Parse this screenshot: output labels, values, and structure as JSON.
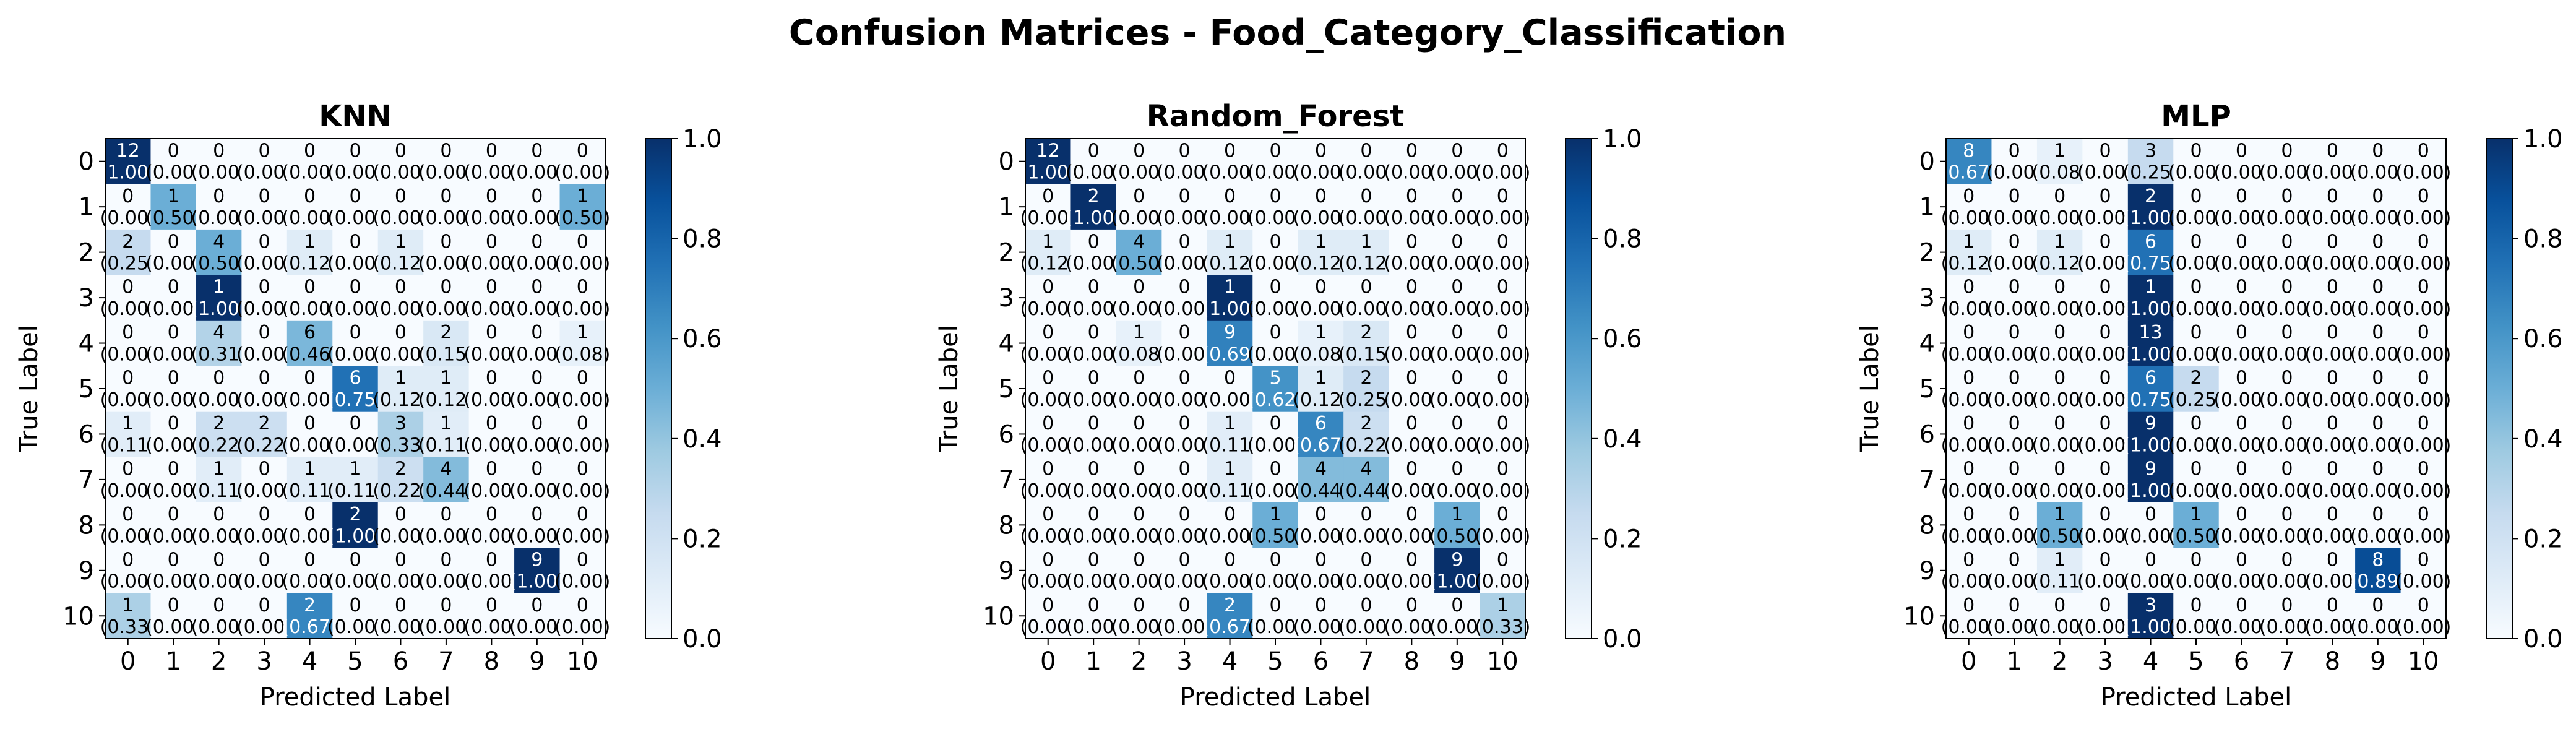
{
  "figure_title": "Confusion Matrices - Food_Category_Classification",
  "chart_data": [
    {
      "type": "heatmap",
      "title": "KNN",
      "xlabel": "Predicted Label",
      "ylabel": "True Label",
      "x_ticks": [
        "0",
        "1",
        "2",
        "3",
        "4",
        "5",
        "6",
        "7",
        "8",
        "9",
        "10"
      ],
      "y_ticks": [
        "0",
        "1",
        "2",
        "3",
        "4",
        "5",
        "6",
        "7",
        "8",
        "9",
        "10"
      ],
      "counts": [
        [
          12,
          0,
          0,
          0,
          0,
          0,
          0,
          0,
          0,
          0,
          0
        ],
        [
          0,
          1,
          0,
          0,
          0,
          0,
          0,
          0,
          0,
          0,
          1
        ],
        [
          2,
          0,
          4,
          0,
          1,
          0,
          1,
          0,
          0,
          0,
          0
        ],
        [
          0,
          0,
          1,
          0,
          0,
          0,
          0,
          0,
          0,
          0,
          0
        ],
        [
          0,
          0,
          4,
          0,
          6,
          0,
          0,
          2,
          0,
          0,
          1
        ],
        [
          0,
          0,
          0,
          0,
          0,
          6,
          1,
          1,
          0,
          0,
          0
        ],
        [
          1,
          0,
          2,
          2,
          0,
          0,
          3,
          1,
          0,
          0,
          0
        ],
        [
          0,
          0,
          1,
          0,
          1,
          1,
          2,
          4,
          0,
          0,
          0
        ],
        [
          0,
          0,
          0,
          0,
          0,
          2,
          0,
          0,
          0,
          0,
          0
        ],
        [
          0,
          0,
          0,
          0,
          0,
          0,
          0,
          0,
          0,
          9,
          0
        ],
        [
          1,
          0,
          0,
          0,
          2,
          0,
          0,
          0,
          0,
          0,
          0
        ]
      ],
      "normalized": [
        [
          "1.00",
          "0.00",
          "0.00",
          "0.00",
          "0.00",
          "0.00",
          "0.00",
          "0.00",
          "0.00",
          "0.00",
          "0.00"
        ],
        [
          "0.00",
          "0.50",
          "0.00",
          "0.00",
          "0.00",
          "0.00",
          "0.00",
          "0.00",
          "0.00",
          "0.00",
          "0.50"
        ],
        [
          "0.25",
          "0.00",
          "0.50",
          "0.00",
          "0.12",
          "0.00",
          "0.12",
          "0.00",
          "0.00",
          "0.00",
          "0.00"
        ],
        [
          "0.00",
          "0.00",
          "1.00",
          "0.00",
          "0.00",
          "0.00",
          "0.00",
          "0.00",
          "0.00",
          "0.00",
          "0.00"
        ],
        [
          "0.00",
          "0.00",
          "0.31",
          "0.00",
          "0.46",
          "0.00",
          "0.00",
          "0.15",
          "0.00",
          "0.00",
          "0.08"
        ],
        [
          "0.00",
          "0.00",
          "0.00",
          "0.00",
          "0.00",
          "0.75",
          "0.12",
          "0.12",
          "0.00",
          "0.00",
          "0.00"
        ],
        [
          "0.11",
          "0.00",
          "0.22",
          "0.22",
          "0.00",
          "0.00",
          "0.33",
          "0.11",
          "0.00",
          "0.00",
          "0.00"
        ],
        [
          "0.00",
          "0.00",
          "0.11",
          "0.00",
          "0.11",
          "0.11",
          "0.22",
          "0.44",
          "0.00",
          "0.00",
          "0.00"
        ],
        [
          "0.00",
          "0.00",
          "0.00",
          "0.00",
          "0.00",
          "1.00",
          "0.00",
          "0.00",
          "0.00",
          "0.00",
          "0.00"
        ],
        [
          "0.00",
          "0.00",
          "0.00",
          "0.00",
          "0.00",
          "0.00",
          "0.00",
          "0.00",
          "0.00",
          "1.00",
          "0.00"
        ],
        [
          "0.33",
          "0.00",
          "0.00",
          "0.00",
          "0.67",
          "0.00",
          "0.00",
          "0.00",
          "0.00",
          "0.00",
          "0.00"
        ]
      ],
      "colorbar": {
        "range": [
          0,
          1
        ],
        "ticks": [
          "0.0",
          "0.2",
          "0.4",
          "0.6",
          "0.8",
          "1.0"
        ],
        "colormap": "Blues"
      }
    },
    {
      "type": "heatmap",
      "title": "Random_Forest",
      "xlabel": "Predicted Label",
      "ylabel": "True Label",
      "x_ticks": [
        "0",
        "1",
        "2",
        "3",
        "4",
        "5",
        "6",
        "7",
        "8",
        "9",
        "10"
      ],
      "y_ticks": [
        "0",
        "1",
        "2",
        "3",
        "4",
        "5",
        "6",
        "7",
        "8",
        "9",
        "10"
      ],
      "counts": [
        [
          12,
          0,
          0,
          0,
          0,
          0,
          0,
          0,
          0,
          0,
          0
        ],
        [
          0,
          2,
          0,
          0,
          0,
          0,
          0,
          0,
          0,
          0,
          0
        ],
        [
          1,
          0,
          4,
          0,
          1,
          0,
          1,
          1,
          0,
          0,
          0
        ],
        [
          0,
          0,
          0,
          0,
          1,
          0,
          0,
          0,
          0,
          0,
          0
        ],
        [
          0,
          0,
          1,
          0,
          9,
          0,
          1,
          2,
          0,
          0,
          0
        ],
        [
          0,
          0,
          0,
          0,
          0,
          5,
          1,
          2,
          0,
          0,
          0
        ],
        [
          0,
          0,
          0,
          0,
          1,
          0,
          6,
          2,
          0,
          0,
          0
        ],
        [
          0,
          0,
          0,
          0,
          1,
          0,
          4,
          4,
          0,
          0,
          0
        ],
        [
          0,
          0,
          0,
          0,
          0,
          1,
          0,
          0,
          0,
          1,
          0
        ],
        [
          0,
          0,
          0,
          0,
          0,
          0,
          0,
          0,
          0,
          9,
          0
        ],
        [
          0,
          0,
          0,
          0,
          2,
          0,
          0,
          0,
          0,
          0,
          1
        ]
      ],
      "normalized": [
        [
          "1.00",
          "0.00",
          "0.00",
          "0.00",
          "0.00",
          "0.00",
          "0.00",
          "0.00",
          "0.00",
          "0.00",
          "0.00"
        ],
        [
          "0.00",
          "1.00",
          "0.00",
          "0.00",
          "0.00",
          "0.00",
          "0.00",
          "0.00",
          "0.00",
          "0.00",
          "0.00"
        ],
        [
          "0.12",
          "0.00",
          "0.50",
          "0.00",
          "0.12",
          "0.00",
          "0.12",
          "0.12",
          "0.00",
          "0.00",
          "0.00"
        ],
        [
          "0.00",
          "0.00",
          "0.00",
          "0.00",
          "1.00",
          "0.00",
          "0.00",
          "0.00",
          "0.00",
          "0.00",
          "0.00"
        ],
        [
          "0.00",
          "0.00",
          "0.08",
          "0.00",
          "0.69",
          "0.00",
          "0.08",
          "0.15",
          "0.00",
          "0.00",
          "0.00"
        ],
        [
          "0.00",
          "0.00",
          "0.00",
          "0.00",
          "0.00",
          "0.62",
          "0.12",
          "0.25",
          "0.00",
          "0.00",
          "0.00"
        ],
        [
          "0.00",
          "0.00",
          "0.00",
          "0.00",
          "0.11",
          "0.00",
          "0.67",
          "0.22",
          "0.00",
          "0.00",
          "0.00"
        ],
        [
          "0.00",
          "0.00",
          "0.00",
          "0.00",
          "0.11",
          "0.00",
          "0.44",
          "0.44",
          "0.00",
          "0.00",
          "0.00"
        ],
        [
          "0.00",
          "0.00",
          "0.00",
          "0.00",
          "0.00",
          "0.50",
          "0.00",
          "0.00",
          "0.00",
          "0.50",
          "0.00"
        ],
        [
          "0.00",
          "0.00",
          "0.00",
          "0.00",
          "0.00",
          "0.00",
          "0.00",
          "0.00",
          "0.00",
          "1.00",
          "0.00"
        ],
        [
          "0.00",
          "0.00",
          "0.00",
          "0.00",
          "0.67",
          "0.00",
          "0.00",
          "0.00",
          "0.00",
          "0.00",
          "0.33"
        ]
      ],
      "colorbar": {
        "range": [
          0,
          1
        ],
        "ticks": [
          "0.0",
          "0.2",
          "0.4",
          "0.6",
          "0.8",
          "1.0"
        ],
        "colormap": "Blues"
      }
    },
    {
      "type": "heatmap",
      "title": "MLP",
      "xlabel": "Predicted Label",
      "ylabel": "True Label",
      "x_ticks": [
        "0",
        "1",
        "2",
        "3",
        "4",
        "5",
        "6",
        "7",
        "8",
        "9",
        "10"
      ],
      "y_ticks": [
        "0",
        "1",
        "2",
        "3",
        "4",
        "5",
        "6",
        "7",
        "8",
        "9",
        "10"
      ],
      "counts": [
        [
          8,
          0,
          1,
          0,
          3,
          0,
          0,
          0,
          0,
          0,
          0
        ],
        [
          0,
          0,
          0,
          0,
          2,
          0,
          0,
          0,
          0,
          0,
          0
        ],
        [
          1,
          0,
          1,
          0,
          6,
          0,
          0,
          0,
          0,
          0,
          0
        ],
        [
          0,
          0,
          0,
          0,
          1,
          0,
          0,
          0,
          0,
          0,
          0
        ],
        [
          0,
          0,
          0,
          0,
          13,
          0,
          0,
          0,
          0,
          0,
          0
        ],
        [
          0,
          0,
          0,
          0,
          6,
          2,
          0,
          0,
          0,
          0,
          0
        ],
        [
          0,
          0,
          0,
          0,
          9,
          0,
          0,
          0,
          0,
          0,
          0
        ],
        [
          0,
          0,
          0,
          0,
          9,
          0,
          0,
          0,
          0,
          0,
          0
        ],
        [
          0,
          0,
          1,
          0,
          0,
          1,
          0,
          0,
          0,
          0,
          0
        ],
        [
          0,
          0,
          1,
          0,
          0,
          0,
          0,
          0,
          0,
          8,
          0
        ],
        [
          0,
          0,
          0,
          0,
          3,
          0,
          0,
          0,
          0,
          0,
          0
        ]
      ],
      "normalized": [
        [
          "0.67",
          "0.00",
          "0.08",
          "0.00",
          "0.25",
          "0.00",
          "0.00",
          "0.00",
          "0.00",
          "0.00",
          "0.00"
        ],
        [
          "0.00",
          "0.00",
          "0.00",
          "0.00",
          "1.00",
          "0.00",
          "0.00",
          "0.00",
          "0.00",
          "0.00",
          "0.00"
        ],
        [
          "0.12",
          "0.00",
          "0.12",
          "0.00",
          "0.75",
          "0.00",
          "0.00",
          "0.00",
          "0.00",
          "0.00",
          "0.00"
        ],
        [
          "0.00",
          "0.00",
          "0.00",
          "0.00",
          "1.00",
          "0.00",
          "0.00",
          "0.00",
          "0.00",
          "0.00",
          "0.00"
        ],
        [
          "0.00",
          "0.00",
          "0.00",
          "0.00",
          "1.00",
          "0.00",
          "0.00",
          "0.00",
          "0.00",
          "0.00",
          "0.00"
        ],
        [
          "0.00",
          "0.00",
          "0.00",
          "0.00",
          "0.75",
          "0.25",
          "0.00",
          "0.00",
          "0.00",
          "0.00",
          "0.00"
        ],
        [
          "0.00",
          "0.00",
          "0.00",
          "0.00",
          "1.00",
          "0.00",
          "0.00",
          "0.00",
          "0.00",
          "0.00",
          "0.00"
        ],
        [
          "0.00",
          "0.00",
          "0.00",
          "0.00",
          "1.00",
          "0.00",
          "0.00",
          "0.00",
          "0.00",
          "0.00",
          "0.00"
        ],
        [
          "0.00",
          "0.00",
          "0.50",
          "0.00",
          "0.00",
          "0.50",
          "0.00",
          "0.00",
          "0.00",
          "0.00",
          "0.00"
        ],
        [
          "0.00",
          "0.00",
          "0.11",
          "0.00",
          "0.00",
          "0.00",
          "0.00",
          "0.00",
          "0.00",
          "0.89",
          "0.00"
        ],
        [
          "0.00",
          "0.00",
          "0.00",
          "0.00",
          "1.00",
          "0.00",
          "0.00",
          "0.00",
          "0.00",
          "0.00",
          "0.00"
        ]
      ],
      "colorbar": {
        "range": [
          0,
          1
        ],
        "ticks": [
          "0.0",
          "0.2",
          "0.4",
          "0.6",
          "0.8",
          "1.0"
        ],
        "colormap": "Blues"
      }
    }
  ]
}
